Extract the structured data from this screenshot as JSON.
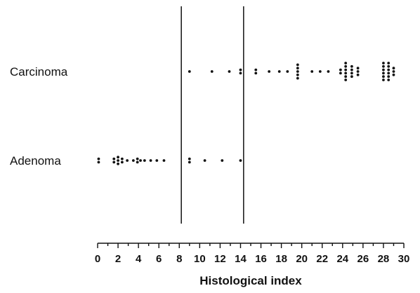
{
  "chart_data": {
    "type": "scatter",
    "title": "",
    "xlabel": "Histological index",
    "ylabel": "",
    "xlim": [
      0,
      30
    ],
    "xticks": [
      0,
      2,
      4,
      6,
      8,
      10,
      12,
      14,
      16,
      18,
      20,
      22,
      24,
      26,
      28,
      30
    ],
    "grid": false,
    "legend": "none",
    "reference_lines_x": [
      8.2,
      14.3
    ],
    "categories": [
      "Carcinoma",
      "Adenoma"
    ],
    "series": [
      {
        "name": "Carcinoma",
        "points": [
          {
            "x": 9.0,
            "count": 1
          },
          {
            "x": 11.2,
            "count": 1
          },
          {
            "x": 12.9,
            "count": 1
          },
          {
            "x": 14.0,
            "count": 2
          },
          {
            "x": 15.5,
            "count": 2
          },
          {
            "x": 16.8,
            "count": 1
          },
          {
            "x": 17.8,
            "count": 1
          },
          {
            "x": 18.6,
            "count": 1
          },
          {
            "x": 19.6,
            "count": 5
          },
          {
            "x": 21.0,
            "count": 1
          },
          {
            "x": 21.8,
            "count": 1
          },
          {
            "x": 22.6,
            "count": 1
          },
          {
            "x": 23.8,
            "count": 2
          },
          {
            "x": 24.3,
            "count": 6
          },
          {
            "x": 24.9,
            "count": 4
          },
          {
            "x": 25.5,
            "count": 3
          },
          {
            "x": 28.0,
            "count": 6
          },
          {
            "x": 28.5,
            "count": 6
          },
          {
            "x": 29.0,
            "count": 3
          }
        ]
      },
      {
        "name": "Adenoma",
        "points": [
          {
            "x": 0.1,
            "count": 2
          },
          {
            "x": 1.6,
            "count": 2
          },
          {
            "x": 2.0,
            "count": 3
          },
          {
            "x": 2.4,
            "count": 2
          },
          {
            "x": 2.9,
            "count": 1
          },
          {
            "x": 3.5,
            "count": 1
          },
          {
            "x": 3.9,
            "count": 2
          },
          {
            "x": 4.2,
            "count": 1
          },
          {
            "x": 4.6,
            "count": 1
          },
          {
            "x": 5.2,
            "count": 1
          },
          {
            "x": 5.8,
            "count": 1
          },
          {
            "x": 6.5,
            "count": 1
          },
          {
            "x": 9.0,
            "count": 2
          },
          {
            "x": 10.5,
            "count": 1
          },
          {
            "x": 12.2,
            "count": 1
          },
          {
            "x": 14.0,
            "count": 1
          }
        ]
      }
    ]
  }
}
